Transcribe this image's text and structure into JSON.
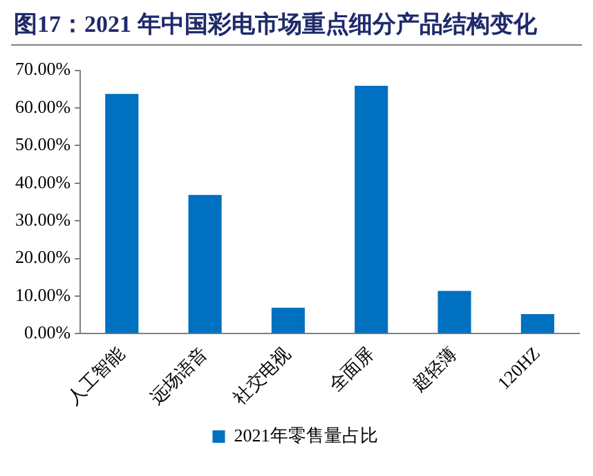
{
  "chart_data": {
    "type": "bar",
    "title": "图17：2021 年中国彩电市场重点细分产品结构变化",
    "categories": [
      "人工智能",
      "远场语音",
      "社交电视",
      "全面屏",
      "超轻薄",
      "120HZ"
    ],
    "series": [
      {
        "name": "2021年零售量占比",
        "color": "#0070c0",
        "values": [
          63.7,
          36.9,
          6.9,
          65.9,
          11.4,
          5.2
        ]
      }
    ],
    "ylim": [
      0,
      70
    ],
    "yticks": [
      {
        "value": 0,
        "label": "0.00%"
      },
      {
        "value": 10,
        "label": "10.00%"
      },
      {
        "value": 20,
        "label": "20.00%"
      },
      {
        "value": 30,
        "label": "30.00%"
      },
      {
        "value": 40,
        "label": "40.00%"
      },
      {
        "value": 50,
        "label": "50.00%"
      },
      {
        "value": 60,
        "label": "60.00%"
      },
      {
        "value": 70,
        "label": "70.00%"
      }
    ],
    "grid": false,
    "legend": "bottom"
  }
}
